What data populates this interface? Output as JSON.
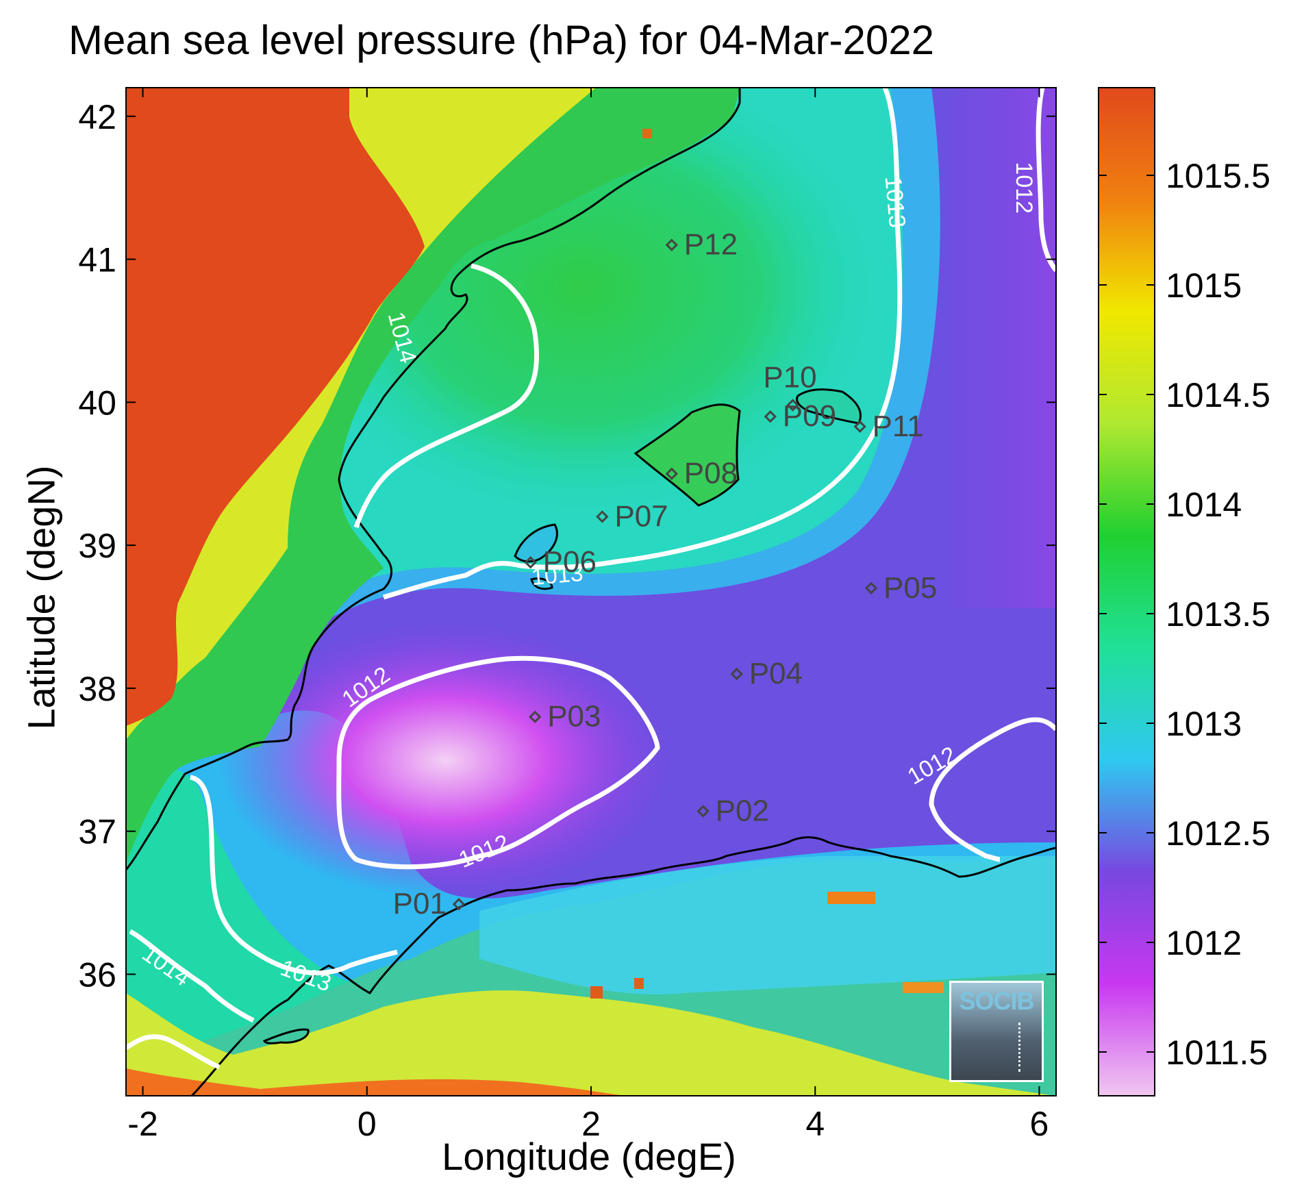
{
  "chart_data": {
    "type": "heatmap",
    "title": "Mean sea level pressure (hPa) for 04-Mar-2022",
    "xlabel": "Longitude (degE)",
    "ylabel": "Latitude (degN)",
    "xlim": [
      -2.15,
      6.15
    ],
    "ylim": [
      35.15,
      42.2
    ],
    "x_ticks": [
      -2,
      0,
      2,
      4,
      6
    ],
    "x_tick_labels": [
      "-2",
      "0",
      "2",
      "4",
      "6"
    ],
    "y_ticks": [
      36,
      37,
      38,
      39,
      40,
      41,
      42
    ],
    "y_tick_labels": [
      "36",
      "37",
      "38",
      "39",
      "40",
      "41",
      "42"
    ],
    "colorbar": {
      "range": [
        1011.3,
        1015.9
      ],
      "ticks": [
        1011.5,
        1012,
        1012.5,
        1013,
        1013.5,
        1014,
        1014.5,
        1015,
        1015.5
      ],
      "tick_labels": [
        "1011.5",
        "1012",
        "1012.5",
        "1013",
        "1013.5",
        "1014",
        "1014.5",
        "1015",
        "1015.5"
      ],
      "colormap": [
        "#f0c8f0",
        "#c838f0",
        "#7848e0",
        "#30c8f0",
        "#20e098",
        "#20d030",
        "#b0e830",
        "#f0e800",
        "#f08010",
        "#e04a1c"
      ]
    },
    "contour_labels": [
      {
        "text": "1014",
        "lon": 0.3,
        "lat": 40.45,
        "angle": 75
      },
      {
        "text": "1013",
        "lon": 4.7,
        "lat": 41.4,
        "angle": 85
      },
      {
        "text": "1012",
        "lon": 5.85,
        "lat": 41.5,
        "angle": 90
      },
      {
        "text": "1013",
        "lon": 1.7,
        "lat": 38.78,
        "angle": -5
      },
      {
        "text": "1012",
        "lon": 0.0,
        "lat": 38.0,
        "angle": -35
      },
      {
        "text": "1012",
        "lon": 1.05,
        "lat": 36.85,
        "angle": -22
      },
      {
        "text": "1012",
        "lon": 5.05,
        "lat": 37.45,
        "angle": -30
      },
      {
        "text": "1013",
        "lon": -0.55,
        "lat": 35.98,
        "angle": 20
      },
      {
        "text": "1014",
        "lon": -1.8,
        "lat": 36.05,
        "angle": 35
      }
    ],
    "stations": [
      {
        "name": "P01",
        "lon": 0.82,
        "lat": 36.49
      },
      {
        "name": "P02",
        "lon": 3.0,
        "lat": 37.14
      },
      {
        "name": "P03",
        "lon": 1.5,
        "lat": 37.8
      },
      {
        "name": "P04",
        "lon": 3.3,
        "lat": 38.1
      },
      {
        "name": "P05",
        "lon": 4.5,
        "lat": 38.7
      },
      {
        "name": "P06",
        "lon": 1.46,
        "lat": 38.88
      },
      {
        "name": "P07",
        "lon": 2.1,
        "lat": 39.2
      },
      {
        "name": "P08",
        "lon": 2.72,
        "lat": 39.5
      },
      {
        "name": "P09",
        "lon": 3.6,
        "lat": 39.9
      },
      {
        "name": "P10",
        "lon": 3.8,
        "lat": 39.98
      },
      {
        "name": "P11",
        "lon": 4.4,
        "lat": 39.83
      },
      {
        "name": "P12",
        "lon": 2.72,
        "lat": 41.1
      }
    ],
    "grid": false
  },
  "logo": {
    "text": "SOCIB"
  },
  "colors": {
    "land_high": "#e04a1c",
    "contour": "#ffffff",
    "coastline": "#000000",
    "station": "#444444"
  }
}
